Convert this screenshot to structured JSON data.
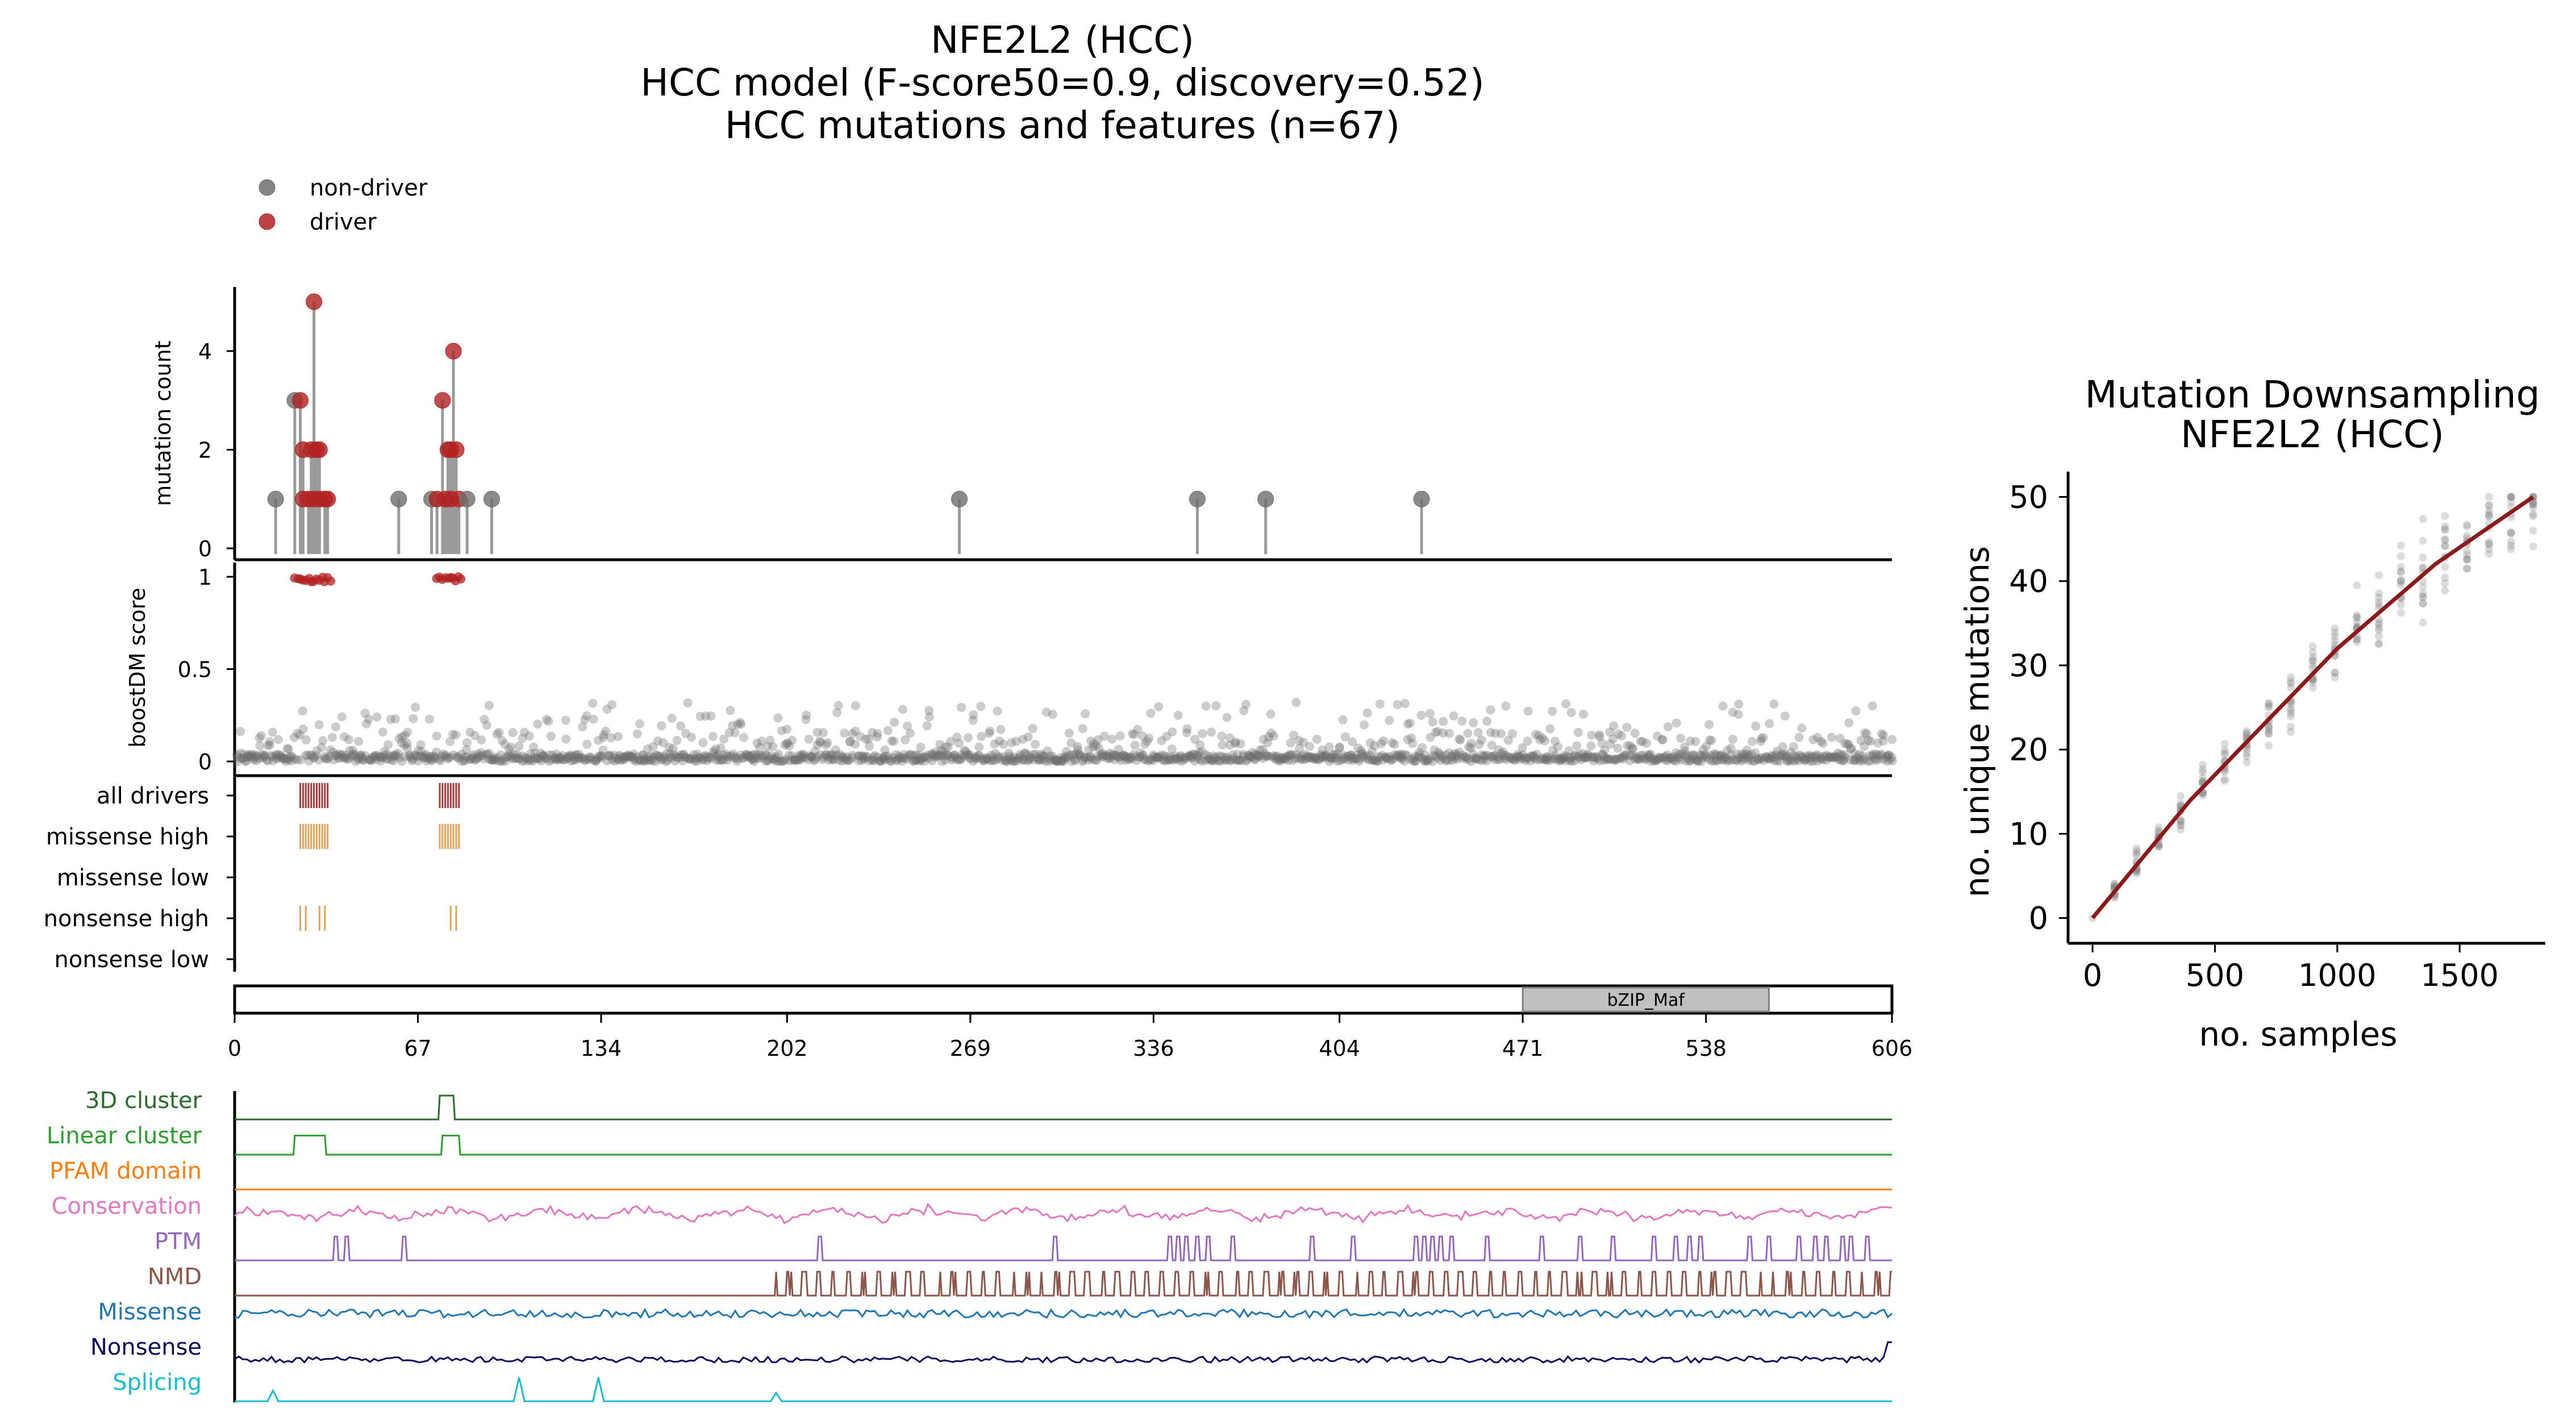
{
  "chart_data": [
    {
      "type": "scatter",
      "title_lines": [
        "NFE2L2 (HCC)",
        "HCC model (F-score50=0.9, discovery=0.52)",
        "HCC mutations and features (n=67)"
      ],
      "legend": [
        {
          "name": "non-driver",
          "color": "#6e6e6e"
        },
        {
          "name": "driver",
          "color": "#b22222"
        }
      ],
      "colors": {
        "nondriver": "#6e6e6e",
        "driver": "#b22222",
        "lollipop_stem": "#9a9a9a",
        "domain_fill": "#c0c0c0",
        "feature_tick": "#e5a35a",
        "driver_tick": "#a33b3b"
      },
      "protein_length": 606,
      "x_ticks": [
        0,
        67,
        134,
        202,
        269,
        336,
        404,
        471,
        538,
        606
      ],
      "mutation_panel": {
        "ylabel": "mutation count",
        "yticks": [
          0,
          2,
          4
        ],
        "ylim": [
          0,
          5.3
        ],
        "mutations": [
          {
            "pos": 15,
            "count": 1,
            "driver": false
          },
          {
            "pos": 22,
            "count": 3,
            "driver": false
          },
          {
            "pos": 24,
            "count": 3,
            "driver": true
          },
          {
            "pos": 25,
            "count": 2,
            "driver": true
          },
          {
            "pos": 25,
            "count": 1,
            "driver": true
          },
          {
            "pos": 27,
            "count": 1,
            "driver": true
          },
          {
            "pos": 28,
            "count": 2,
            "driver": true
          },
          {
            "pos": 29,
            "count": 5,
            "driver": true
          },
          {
            "pos": 29,
            "count": 1,
            "driver": true
          },
          {
            "pos": 30,
            "count": 2,
            "driver": true
          },
          {
            "pos": 31,
            "count": 2,
            "driver": true
          },
          {
            "pos": 31,
            "count": 1,
            "driver": true
          },
          {
            "pos": 33,
            "count": 1,
            "driver": true
          },
          {
            "pos": 34,
            "count": 1,
            "driver": true
          },
          {
            "pos": 60,
            "count": 1,
            "driver": false
          },
          {
            "pos": 72,
            "count": 1,
            "driver": false
          },
          {
            "pos": 74,
            "count": 1,
            "driver": true
          },
          {
            "pos": 76,
            "count": 3,
            "driver": true
          },
          {
            "pos": 77,
            "count": 1,
            "driver": true
          },
          {
            "pos": 78,
            "count": 2,
            "driver": true
          },
          {
            "pos": 79,
            "count": 1,
            "driver": true
          },
          {
            "pos": 79,
            "count": 2,
            "driver": true
          },
          {
            "pos": 80,
            "count": 4,
            "driver": true
          },
          {
            "pos": 81,
            "count": 2,
            "driver": true
          },
          {
            "pos": 82,
            "count": 1,
            "driver": true
          },
          {
            "pos": 85,
            "count": 1,
            "driver": false
          },
          {
            "pos": 94,
            "count": 1,
            "driver": false
          },
          {
            "pos": 265,
            "count": 1,
            "driver": false
          },
          {
            "pos": 352,
            "count": 1,
            "driver": false
          },
          {
            "pos": 377,
            "count": 1,
            "driver": false
          },
          {
            "pos": 434,
            "count": 1,
            "driver": false
          }
        ]
      },
      "score_panel": {
        "ylabel": "boostDM score",
        "yticks": [
          0,
          0.5,
          1
        ],
        "ylim": [
          -0.05,
          1.05
        ],
        "driver_ranges": [
          [
            22,
            35
          ],
          [
            74,
            83
          ]
        ],
        "description_of_points": "per-position scores; most near 0, scattered values up to ~0.35; driver positions score ~1"
      },
      "track_panel": {
        "tracks": [
          {
            "label": "all drivers",
            "color": "#a33b3b",
            "positions": [
              24,
              25,
              26,
              27,
              28,
              29,
              30,
              31,
              32,
              33,
              34,
              75,
              76,
              77,
              78,
              79,
              80,
              81,
              82
            ]
          },
          {
            "label": "missense high",
            "color": "#e5a35a",
            "positions": [
              24,
              25,
              26,
              27,
              28,
              29,
              30,
              31,
              32,
              33,
              34,
              75,
              76,
              77,
              78,
              79,
              80,
              81,
              82
            ]
          },
          {
            "label": "missense low",
            "color": "#e5a35a",
            "positions": []
          },
          {
            "label": "nonsense high",
            "color": "#e5a35a",
            "positions": [
              24,
              26,
              31,
              33,
              79,
              81
            ]
          },
          {
            "label": "nonsense low",
            "color": "#e5a35a",
            "positions": []
          }
        ]
      },
      "domains": [
        {
          "name": "bZIP_Maf",
          "start": 471,
          "end": 561
        }
      ],
      "feature_tracks": [
        {
          "label": "3D cluster",
          "color": "#2b6b2b"
        },
        {
          "label": "Linear cluster",
          "color": "#2ca02c"
        },
        {
          "label": "PFAM domain",
          "color": "#ff7f0e"
        },
        {
          "label": "Conservation",
          "color": "#e377c2"
        },
        {
          "label": "PTM",
          "color": "#9467bd"
        },
        {
          "label": "NMD",
          "color": "#8c564b"
        },
        {
          "label": "Missense",
          "color": "#1f77b4"
        },
        {
          "label": "Nonsense",
          "color": "#0d0d5e"
        },
        {
          "label": "Splicing",
          "color": "#17becf"
        }
      ]
    },
    {
      "type": "scatter",
      "title_lines": [
        "Mutation Downsampling",
        "NFE2L2 (HCC)"
      ],
      "xlabel": "no. samples",
      "ylabel": "no. unique mutations",
      "xlim": [
        -100,
        1850
      ],
      "ylim": [
        -3,
        53
      ],
      "xticks": [
        0,
        500,
        1000,
        1500
      ],
      "yticks": [
        0,
        10,
        20,
        30,
        40,
        50
      ],
      "curve_color": "#8b1a1a",
      "curve": {
        "x": [
          0,
          100,
          200,
          300,
          400,
          500,
          600,
          700,
          800,
          900,
          1000,
          1100,
          1200,
          1300,
          1400,
          1500,
          1600,
          1700,
          1800
        ],
        "y": [
          0,
          3.5,
          7,
          10.5,
          14,
          17,
          20,
          23,
          26,
          29,
          32,
          34.5,
          37,
          39.5,
          42,
          44,
          46,
          48,
          50
        ]
      }
    }
  ]
}
